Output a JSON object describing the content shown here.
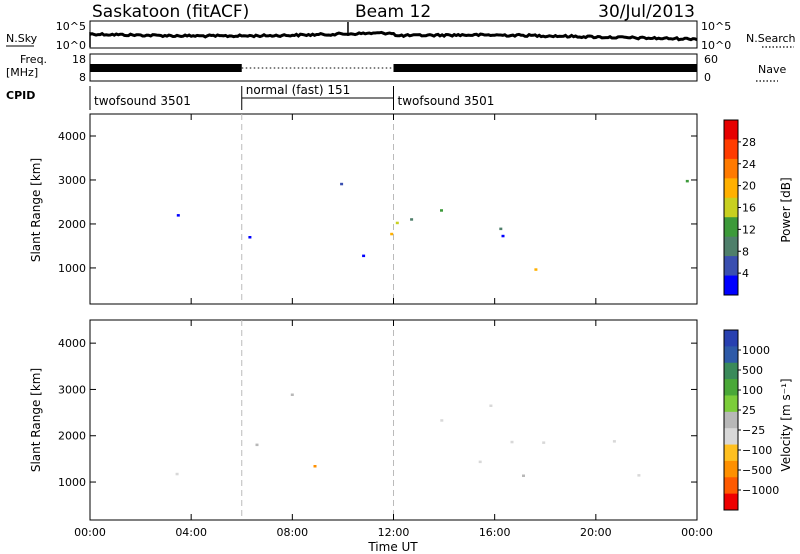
{
  "header": {
    "title": "Saskatoon (fitACF)",
    "beam": "Beam 12",
    "date": "30/Jul/2013"
  },
  "top_panels": {
    "nsky": {
      "label": "N.Sky",
      "left_ticks": [
        "10^5",
        "10^0"
      ],
      "right_ticks": [
        "10^5",
        "10^0"
      ],
      "right_label": "N.Search"
    },
    "freq": {
      "label1": "Freq.",
      "label2": "[MHz]",
      "left_ticks": [
        "18",
        "8"
      ],
      "right_ticks": [
        "60",
        "0"
      ],
      "right_label": "Nave"
    },
    "cpid": {
      "label": "CPID",
      "segments": [
        {
          "name": "twofsound 3501",
          "start": 0,
          "end": 6
        },
        {
          "name": "normal (fast) 151",
          "start": 6,
          "end": 12
        },
        {
          "name": "twofsound 3501",
          "start": 12,
          "end": 24
        }
      ]
    }
  },
  "chart_data": [
    {
      "type": "heatmap",
      "name": "power",
      "ylabel": "Slant Range [km]",
      "ylim": [
        180,
        4500
      ],
      "yticks": [
        1000,
        2000,
        3000,
        4000
      ],
      "xlim": [
        0,
        24
      ],
      "colorbar": {
        "label": "Power [dB]",
        "ticks": [
          "28",
          "24",
          "20",
          "16",
          "12",
          "8",
          "4"
        ],
        "colors": [
          "#e60000",
          "#ff3c00",
          "#ff7a00",
          "#ffb000",
          "#c8d020",
          "#3d9a3a",
          "#4f7f6b",
          "#3a4fb0",
          "#0000ff"
        ]
      }
    },
    {
      "type": "heatmap",
      "name": "velocity",
      "ylabel": "Slant Range [km]",
      "xlabel": "Time UT",
      "ylim": [
        180,
        4500
      ],
      "yticks": [
        1000,
        2000,
        3000,
        4000
      ],
      "xlim": [
        0,
        24
      ],
      "xticks": [
        "00:00",
        "04:00",
        "08:00",
        "12:00",
        "16:00",
        "20:00",
        "00:00"
      ],
      "colorbar": {
        "label": "Velocity [m s⁻¹]",
        "ticks": [
          "1000",
          "500",
          "100",
          "25",
          "−25",
          "−100",
          "−500",
          "−1000"
        ],
        "colors": [
          "#2840b0",
          "#2e5aa8",
          "#3a8a5a",
          "#4aa838",
          "#7ccd3a",
          "#b8b8b8",
          "#d8d8d8",
          "#ffc020",
          "#ff9000",
          "#ff5a00",
          "#ee0000"
        ]
      }
    }
  ]
}
